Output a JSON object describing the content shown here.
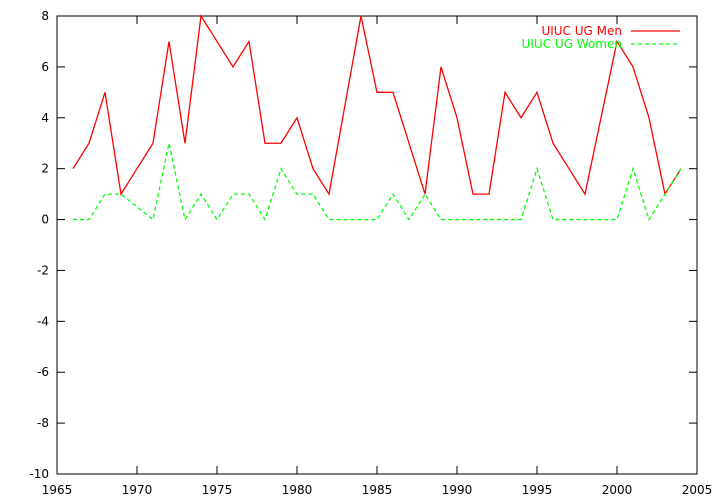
{
  "chart_data": {
    "type": "line",
    "title": "",
    "xlabel": "",
    "ylabel": "",
    "xlim": [
      1965,
      2005
    ],
    "ylim": [
      -10,
      8
    ],
    "xticks": [
      1965,
      1970,
      1975,
      1980,
      1985,
      1990,
      1995,
      2000,
      2005
    ],
    "yticks": [
      -10,
      -8,
      -6,
      -4,
      -2,
      0,
      2,
      4,
      6,
      8
    ],
    "grid": false,
    "legend_position": "top-right",
    "x": [
      1966,
      1967,
      1968,
      1969,
      1970,
      1971,
      1972,
      1973,
      1974,
      1975,
      1976,
      1977,
      1978,
      1979,
      1980,
      1981,
      1982,
      1983,
      1984,
      1985,
      1986,
      1987,
      1988,
      1989,
      1990,
      1991,
      1992,
      1993,
      1994,
      1995,
      1996,
      1997,
      1998,
      1999,
      2000,
      2001,
      2002,
      2003,
      2004
    ],
    "series": [
      {
        "name": "UIUC UG Men",
        "color": "#ff0000",
        "dash": "solid",
        "values": [
          2,
          3,
          5,
          1,
          2,
          3,
          7,
          3,
          8,
          7,
          6,
          7,
          3,
          3,
          4,
          2,
          1,
          4.5,
          8,
          5,
          5,
          3,
          1,
          6,
          4,
          1,
          1,
          5,
          4,
          5,
          3,
          2,
          1,
          4,
          7,
          6,
          4,
          1,
          2
        ]
      },
      {
        "name": "UIUC UG Women",
        "color": "#00ff00",
        "dash": "dashed",
        "values": [
          0,
          0,
          1,
          1,
          0.5,
          0,
          3,
          0,
          1,
          0,
          1,
          1,
          0,
          2,
          1,
          1,
          0,
          0,
          0,
          0,
          1,
          0,
          1,
          0,
          0,
          0,
          0,
          0,
          0,
          2,
          0,
          0,
          0,
          0,
          0,
          2,
          0,
          1,
          2
        ]
      }
    ]
  }
}
